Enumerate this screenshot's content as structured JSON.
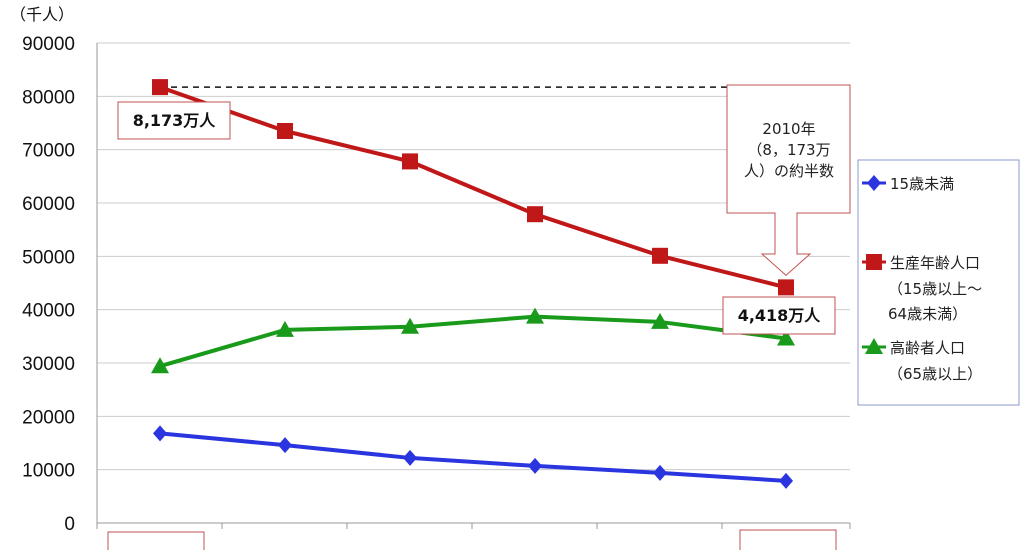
{
  "chart_data": {
    "type": "line",
    "unit_label": "（千人）",
    "ylim": [
      0,
      90000
    ],
    "yticks": [
      "0",
      "10000",
      "20000",
      "30000",
      "40000",
      "50000",
      "60000",
      "70000",
      "80000",
      "90000"
    ],
    "x": [
      1,
      2,
      3,
      4,
      5,
      6
    ],
    "grid": true,
    "legend_position": "right",
    "series": [
      {
        "name": "15歳未満",
        "color": "#2a35e0",
        "marker": "diamond",
        "values": [
          16800,
          14600,
          12200,
          10700,
          9400,
          7900
        ]
      },
      {
        "name": "生産年齢人口",
        "sublabel": [
          "（15歳以上～",
          "64歳未満）"
        ],
        "color": "#c01818",
        "marker": "square",
        "values": [
          81730,
          73500,
          67800,
          57900,
          50100,
          44180
        ]
      },
      {
        "name": "高齢者人口",
        "sublabel": [
          "（65歳以上）"
        ],
        "color": "#1a9a1a",
        "marker": "triangle",
        "values": [
          29400,
          36200,
          36800,
          38700,
          37700,
          34600
        ]
      }
    ],
    "annotations": {
      "start_value": "8,173万人",
      "end_value": "4,418万人",
      "half_note": [
        "2010年",
        "（8，173万",
        "人）の約半数"
      ]
    }
  }
}
